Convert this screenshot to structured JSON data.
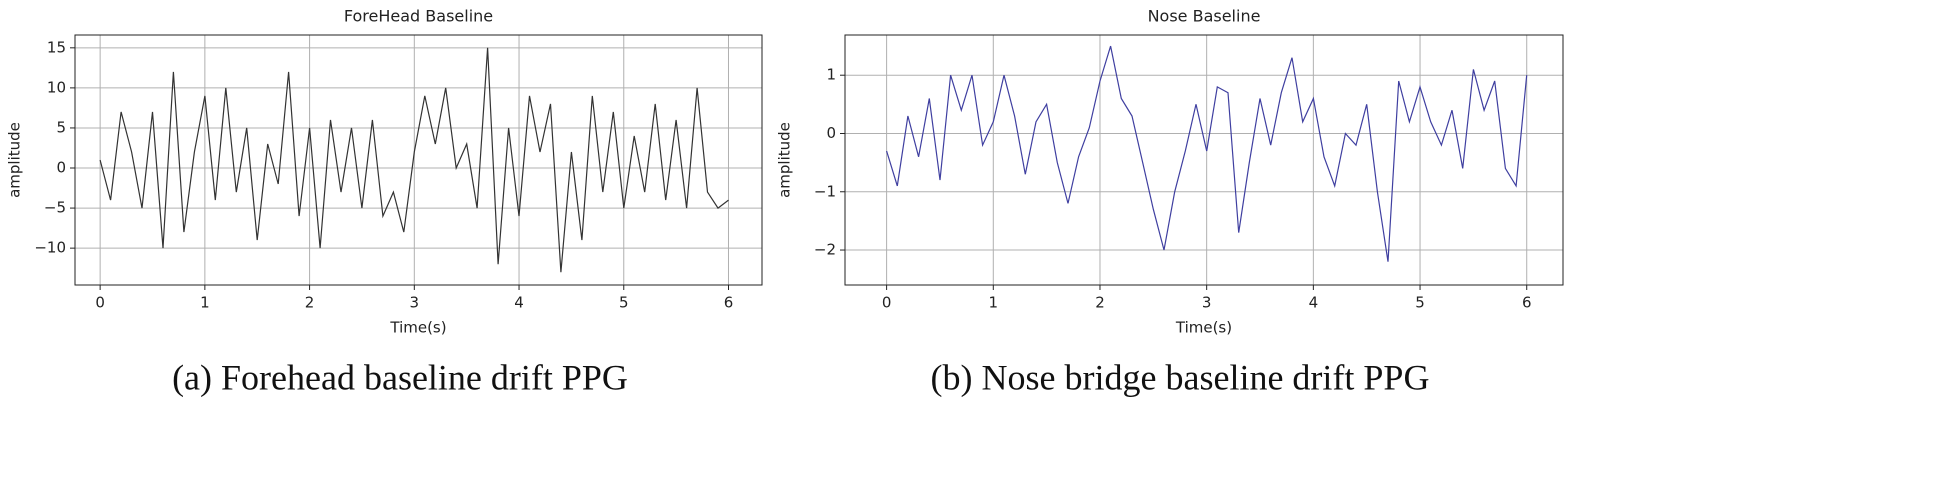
{
  "chart_data": [
    {
      "type": "line",
      "title": "ForeHead Baseline",
      "xlabel": "Time(s)",
      "ylabel": "amplitude",
      "caption": "(a) Forehead baseline drift PPG",
      "x": [
        0,
        0.1,
        0.2,
        0.3,
        0.4,
        0.5,
        0.6,
        0.7,
        0.8,
        0.9,
        1,
        1.1,
        1.2,
        1.3,
        1.4,
        1.5,
        1.6,
        1.7,
        1.8,
        1.9,
        2,
        2.1,
        2.2,
        2.3,
        2.4,
        2.5,
        2.6,
        2.7,
        2.8,
        2.9,
        3,
        3.1,
        3.2,
        3.3,
        3.4,
        3.5,
        3.6,
        3.7,
        3.8,
        3.9,
        4,
        4.1,
        4.2,
        4.3,
        4.4,
        4.5,
        4.6,
        4.7,
        4.8,
        4.9,
        5,
        5.1,
        5.2,
        5.3,
        5.4,
        5.5,
        5.6,
        5.7,
        5.8,
        5.9,
        6
      ],
      "series": [
        {
          "name": "forehead",
          "color": "#333333",
          "values": [
            1,
            -4,
            7,
            2,
            -5,
            7,
            -10,
            12,
            -8,
            2,
            9,
            -4,
            10,
            -3,
            5,
            -9,
            3,
            -2,
            12,
            -6,
            5,
            -10,
            6,
            -3,
            5,
            -5,
            6,
            -6,
            -3,
            -8,
            2,
            9,
            3,
            10,
            0,
            3,
            -5,
            15,
            -12,
            5,
            -6,
            9,
            2,
            8,
            -13,
            2,
            -9,
            9,
            -3,
            7,
            -5,
            4,
            -3,
            8,
            -4,
            6,
            -5,
            10,
            -3,
            -5,
            -4
          ]
        }
      ],
      "xlim": [
        -0.24,
        6.32
      ],
      "ylim": [
        -14.6,
        16.6
      ],
      "xticks": [
        0,
        1,
        2,
        3,
        4,
        5,
        6
      ],
      "yticks": [
        {
          "value": -10,
          "label": "−10"
        },
        {
          "value": -5,
          "label": "−5"
        },
        0,
        5,
        10,
        15
      ],
      "grid": true
    },
    {
      "type": "line",
      "title": "Nose Baseline",
      "xlabel": "Time(s)",
      "ylabel": "amplitude",
      "caption": "(b)  Nose bridge baseline drift PPG",
      "x": [
        0,
        0.1,
        0.2,
        0.3,
        0.4,
        0.5,
        0.6,
        0.7,
        0.8,
        0.9,
        1,
        1.1,
        1.2,
        1.3,
        1.4,
        1.5,
        1.6,
        1.7,
        1.8,
        1.9,
        2,
        2.1,
        2.2,
        2.3,
        2.4,
        2.5,
        2.6,
        2.7,
        2.8,
        2.9,
        3,
        3.1,
        3.2,
        3.3,
        3.4,
        3.5,
        3.6,
        3.7,
        3.8,
        3.9,
        4,
        4.1,
        4.2,
        4.3,
        4.4,
        4.5,
        4.6,
        4.7,
        4.8,
        4.9,
        5,
        5.1,
        5.2,
        5.3,
        5.4,
        5.5,
        5.6,
        5.7,
        5.8,
        5.9,
        6
      ],
      "series": [
        {
          "name": "nose",
          "color": "#3f3fa0",
          "values": [
            -0.3,
            -0.9,
            0.3,
            -0.4,
            0.6,
            -0.8,
            1.0,
            0.4,
            1.0,
            -0.2,
            0.2,
            1.0,
            0.3,
            -0.7,
            0.2,
            0.5,
            -0.5,
            -1.2,
            -0.4,
            0.1,
            0.9,
            1.5,
            0.6,
            0.3,
            -0.5,
            -1.3,
            -2.0,
            -1.0,
            -0.3,
            0.5,
            -0.3,
            0.8,
            0.7,
            -1.7,
            -0.5,
            0.6,
            -0.2,
            0.7,
            1.3,
            0.2,
            0.6,
            -0.4,
            -0.9,
            0.0,
            -0.2,
            0.5,
            -1.0,
            -2.2,
            0.9,
            0.2,
            0.8,
            0.2,
            -0.2,
            0.4,
            -0.6,
            1.1,
            0.4,
            0.9,
            -0.6,
            -0.9,
            1.0
          ]
        }
      ],
      "xlim": [
        -0.39,
        6.34
      ],
      "ylim": [
        -2.6,
        1.69
      ],
      "xticks": [
        0,
        1,
        2,
        3,
        4,
        5,
        6
      ],
      "yticks": [
        {
          "value": -2,
          "label": "−2"
        },
        {
          "value": -1,
          "label": "−1"
        },
        0,
        1
      ],
      "grid": true
    }
  ]
}
